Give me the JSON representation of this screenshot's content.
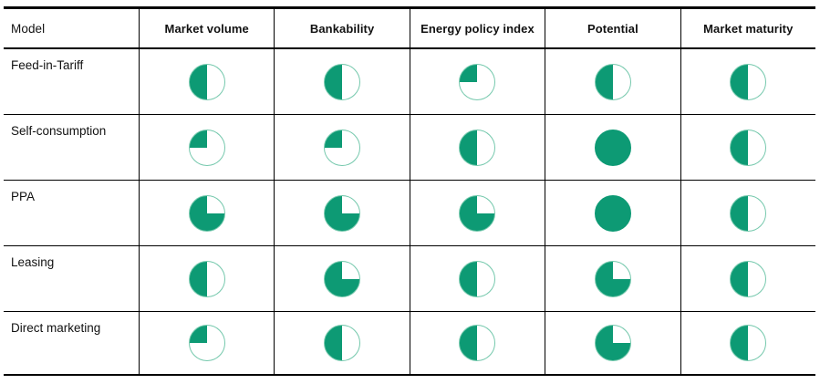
{
  "chart_data": {
    "type": "table",
    "title": "",
    "description": "Comparison matrix of business models rated with Harvey balls (percent filled, fill runs counterclockwise from top)",
    "columns": [
      "Model",
      "Market volume",
      "Bankability",
      "Energy policy index",
      "Potential",
      "Market maturity"
    ],
    "rows": [
      {
        "label": "Feed-in-Tariff",
        "values": [
          50,
          50,
          25,
          50,
          50
        ]
      },
      {
        "label": "Self-consumption",
        "values": [
          25,
          25,
          50,
          100,
          50
        ]
      },
      {
        "label": "PPA",
        "values": [
          75,
          75,
          75,
          100,
          50
        ]
      },
      {
        "label": "Leasing",
        "values": [
          50,
          75,
          50,
          75,
          50
        ]
      },
      {
        "label": "Direct marketing",
        "values": [
          25,
          50,
          50,
          75,
          50
        ]
      }
    ],
    "value_scale": "percent",
    "legend_position": "none",
    "grid": "table lines: thick top and bottom rules, thin row and column separators"
  },
  "colors": {
    "harvey_fill": "#0d9a74",
    "harvey_outline": "#74c8ac",
    "rule": "#000000",
    "text": "#111111",
    "background": "#ffffff"
  },
  "icons": {
    "harvey_ball": "harvey-ball-icon"
  }
}
